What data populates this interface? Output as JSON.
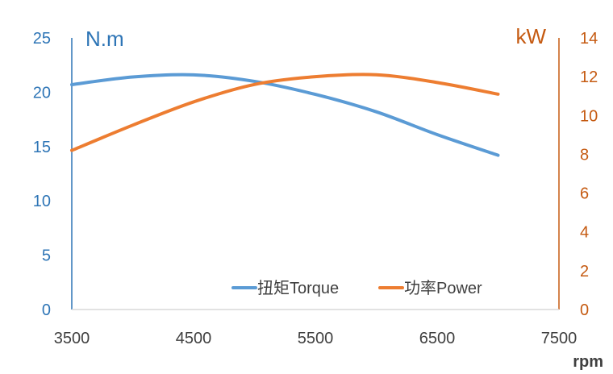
{
  "chart_data": {
    "type": "line",
    "x": [
      3500,
      4000,
      4500,
      5000,
      5500,
      6000,
      6500,
      7000
    ],
    "xlim": [
      3500,
      7500
    ],
    "xticks": [
      "3500",
      "4500",
      "5500",
      "6500",
      "7500"
    ],
    "xlabel": "rpm",
    "y_left": {
      "label": "N.m",
      "lim": [
        0,
        25
      ],
      "ticks": [
        "0",
        "5",
        "10",
        "15",
        "20",
        "25"
      ],
      "color": "#2e75b6"
    },
    "y_right": {
      "label": "kW",
      "lim": [
        0,
        14
      ],
      "ticks": [
        "0",
        "2",
        "4",
        "6",
        "8",
        "10",
        "12",
        "14"
      ],
      "color": "#c55a11"
    },
    "series": [
      {
        "name": "扭矩Torque",
        "axis": "left",
        "color": "#5b9bd5",
        "values": [
          20.7,
          21.4,
          21.6,
          21.0,
          19.8,
          18.2,
          16.1,
          14.2
        ]
      },
      {
        "name": "功率Power",
        "axis": "right",
        "color": "#ed7d31",
        "values": [
          8.2,
          9.5,
          10.7,
          11.6,
          12.0,
          12.1,
          11.7,
          11.1
        ]
      }
    ],
    "legend": "bottom-right",
    "grid": false
  }
}
